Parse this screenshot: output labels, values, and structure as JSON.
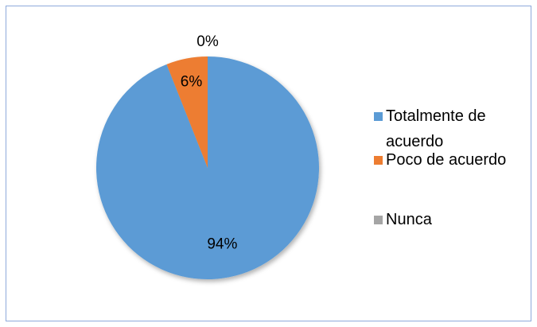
{
  "chart_data": {
    "type": "pie",
    "categories": [
      "Totalmente de acuerdo",
      "Poco de acuerdo",
      "Nunca"
    ],
    "values": [
      94,
      6,
      0
    ],
    "value_labels": [
      "94%",
      "6%",
      "0%"
    ],
    "colors": [
      "#5b9bd5",
      "#ed7d31",
      "#a5a5a5"
    ],
    "legend": "right"
  }
}
